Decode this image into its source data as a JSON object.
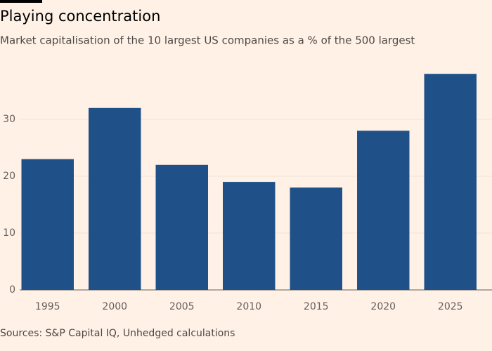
{
  "chart_data": {
    "type": "bar",
    "title": "Playing concentration",
    "subtitle": "Market capitalisation of the 10 largest US companies as a % of the 500 largest",
    "source": "Sources: S&P Capital IQ, Unhedged calculations",
    "categories": [
      "1995",
      "2000",
      "2005",
      "2010",
      "2015",
      "2020",
      "2025"
    ],
    "values": [
      23,
      32,
      22,
      19,
      18,
      28,
      38
    ],
    "color": "#1f5188",
    "ylim": [
      0,
      40
    ],
    "yticks": [
      0,
      10,
      20,
      30
    ],
    "grid": true
  }
}
